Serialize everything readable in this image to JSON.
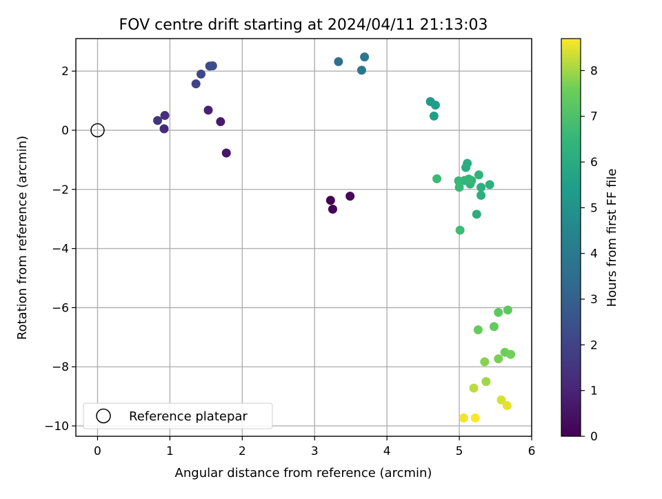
{
  "chart_data": {
    "type": "scatter",
    "title": "FOV centre drift starting at 2024/04/11 21:13:03",
    "xlabel": "Angular distance from reference (arcmin)",
    "ylabel": "Rotation from reference (arcmin)",
    "xlim": [
      -0.3,
      6.0
    ],
    "ylim": [
      -10.35,
      3.1
    ],
    "xticks": [
      0,
      1,
      2,
      3,
      4,
      5,
      6
    ],
    "xtick_labels": [
      "0",
      "1",
      "2",
      "3",
      "4",
      "5",
      "6"
    ],
    "yticks": [
      -10,
      -8,
      -6,
      -4,
      -2,
      0,
      2
    ],
    "ytick_labels": [
      "−10",
      "−8",
      "−6",
      "−4",
      "−2",
      "0",
      "2"
    ],
    "grid": true,
    "legend": {
      "placement": "lower-left",
      "entries": [
        "Reference platepar"
      ]
    },
    "reference_point": {
      "x": 0,
      "y": 0,
      "marker": "open-circle"
    },
    "colorbar": {
      "label": "Hours from first FF file",
      "colormap": "viridis",
      "range": [
        0,
        8.7
      ],
      "ticks": [
        0,
        1,
        2,
        3,
        4,
        5,
        6,
        7,
        8
      ],
      "tick_labels": [
        "0",
        "1",
        "2",
        "3",
        "4",
        "5",
        "6",
        "7",
        "8"
      ]
    },
    "series": [
      {
        "points": [
          {
            "x": 3.22,
            "y": -2.37,
            "hours": 0.0
          },
          {
            "x": 3.25,
            "y": -2.67,
            "hours": 0.1
          },
          {
            "x": 3.49,
            "y": -2.23,
            "hours": 0.2
          },
          {
            "x": 1.78,
            "y": -0.77,
            "hours": 0.6
          },
          {
            "x": 1.7,
            "y": 0.29,
            "hours": 0.75
          },
          {
            "x": 1.53,
            "y": 0.68,
            "hours": 0.9
          },
          {
            "x": 0.92,
            "y": 0.05,
            "hours": 1.2
          },
          {
            "x": 0.93,
            "y": 0.5,
            "hours": 1.35
          },
          {
            "x": 0.83,
            "y": 0.33,
            "hours": 1.5
          },
          {
            "x": 1.36,
            "y": 1.57,
            "hours": 2.0
          },
          {
            "x": 1.43,
            "y": 1.9,
            "hours": 2.1
          },
          {
            "x": 1.55,
            "y": 2.17,
            "hours": 2.2
          },
          {
            "x": 1.59,
            "y": 2.18,
            "hours": 2.3
          },
          {
            "x": 3.33,
            "y": 2.32,
            "hours": 3.6
          },
          {
            "x": 3.65,
            "y": 2.03,
            "hours": 3.8
          },
          {
            "x": 3.69,
            "y": 2.48,
            "hours": 3.9
          },
          {
            "x": 4.6,
            "y": 0.97,
            "hours": 5.3
          },
          {
            "x": 4.67,
            "y": 0.85,
            "hours": 5.4
          },
          {
            "x": 4.65,
            "y": 0.48,
            "hours": 5.5
          },
          {
            "x": 5.09,
            "y": -1.26,
            "hours": 6.0
          },
          {
            "x": 5.11,
            "y": -1.12,
            "hours": 6.05
          },
          {
            "x": 5.24,
            "y": -2.84,
            "hours": 6.1
          },
          {
            "x": 5.3,
            "y": -2.2,
            "hours": 6.15
          },
          {
            "x": 5.3,
            "y": -1.93,
            "hours": 6.2
          },
          {
            "x": 5.42,
            "y": -1.84,
            "hours": 6.25
          },
          {
            "x": 5.27,
            "y": -1.51,
            "hours": 6.3
          },
          {
            "x": 5.15,
            "y": -1.82,
            "hours": 6.35
          },
          {
            "x": 5.07,
            "y": -1.7,
            "hours": 6.4
          },
          {
            "x": 5.17,
            "y": -1.7,
            "hours": 6.45
          },
          {
            "x": 5.13,
            "y": -1.65,
            "hours": 6.5
          },
          {
            "x": 4.99,
            "y": -1.71,
            "hours": 6.55
          },
          {
            "x": 5.0,
            "y": -1.93,
            "hours": 6.6
          },
          {
            "x": 4.69,
            "y": -1.64,
            "hours": 6.65
          },
          {
            "x": 5.01,
            "y": -3.38,
            "hours": 6.7
          },
          {
            "x": 5.67,
            "y": -6.08,
            "hours": 7.3
          },
          {
            "x": 5.54,
            "y": -6.16,
            "hours": 7.35
          },
          {
            "x": 5.48,
            "y": -6.64,
            "hours": 7.4
          },
          {
            "x": 5.26,
            "y": -6.75,
            "hours": 7.45
          },
          {
            "x": 5.63,
            "y": -7.51,
            "hours": 7.6
          },
          {
            "x": 5.71,
            "y": -7.58,
            "hours": 7.65
          },
          {
            "x": 5.54,
            "y": -7.73,
            "hours": 7.7
          },
          {
            "x": 5.35,
            "y": -7.83,
            "hours": 7.8
          },
          {
            "x": 5.37,
            "y": -8.5,
            "hours": 8.0
          },
          {
            "x": 5.2,
            "y": -8.72,
            "hours": 8.2
          },
          {
            "x": 5.58,
            "y": -9.12,
            "hours": 8.4
          },
          {
            "x": 5.66,
            "y": -9.31,
            "hours": 8.5
          },
          {
            "x": 5.06,
            "y": -9.73,
            "hours": 8.6
          },
          {
            "x": 5.22,
            "y": -9.73,
            "hours": 8.7
          }
        ]
      }
    ]
  }
}
